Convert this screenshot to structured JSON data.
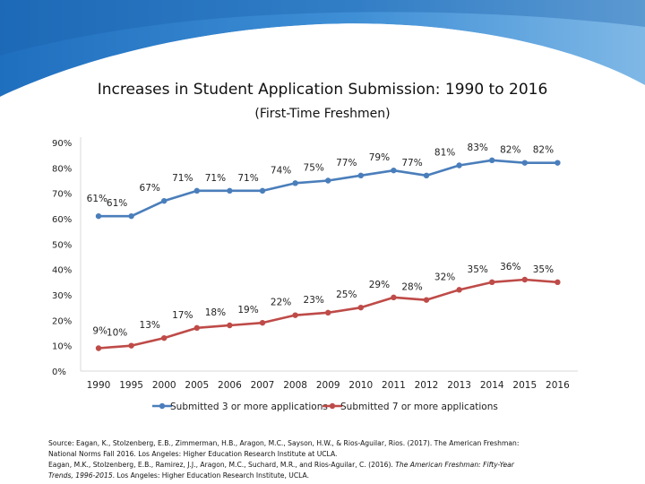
{
  "header": {
    "title": "Increases in Student Application Submission: 1990 to 2016",
    "subtitle": "(First-Time Freshmen)"
  },
  "colors": {
    "banner_dark": "#1f6fbf",
    "banner_light": "#5ea4df",
    "series_blue": "#4a7ebb",
    "series_red": "#be4b48",
    "axis": "#d9d9d9",
    "text": "#111111"
  },
  "chart_data": {
    "type": "line",
    "title": "Increases in Student Application Submission: 1990 to 2016",
    "subtitle": "(First-Time Freshmen)",
    "x": [
      "1990",
      "1995",
      "2000",
      "2005",
      "2006",
      "2007",
      "2008",
      "2009",
      "2010",
      "2011",
      "2012",
      "2013",
      "2014",
      "2015",
      "2016"
    ],
    "yticks": [
      "0%",
      "10%",
      "20%",
      "30%",
      "40%",
      "50%",
      "60%",
      "70%",
      "80%",
      "90%"
    ],
    "ylim": [
      0,
      90
    ],
    "grid": false,
    "legend": "bottom",
    "series": [
      {
        "name": "Submitted 3 or more applications",
        "values": [
          61,
          61,
          67,
          71,
          71,
          71,
          74,
          75,
          77,
          79,
          77,
          81,
          83,
          82,
          82
        ],
        "labels": [
          "61%",
          "61%",
          "67%",
          "71%",
          "71%",
          "71%",
          "74%",
          "75%",
          "77%",
          "79%",
          "77%",
          "81%",
          "83%",
          "82%",
          "82%"
        ]
      },
      {
        "name": "Submitted 7 or more applications",
        "values": [
          9,
          10,
          13,
          17,
          18,
          19,
          22,
          23,
          25,
          29,
          28,
          32,
          35,
          36,
          35
        ],
        "labels": [
          "9%",
          "10%",
          "13%",
          "17%",
          "18%",
          "19%",
          "22%",
          "23%",
          "25%",
          "29%",
          "28%",
          "32%",
          "35%",
          "36%",
          "35%"
        ]
      }
    ]
  },
  "source": {
    "line1": "Source: Eagan, K., Stolzenberg, E.B., Zimmerman, H.B., Aragon, M.C., Sayson, H.W., & Rios-Aguilar, Rios. (2017). The American Freshman:",
    "line2": "National Norms Fall 2016. Los Angeles: Higher Education Research Institute at UCLA.",
    "line3_a": "Eagan, M.K., Stolzenberg, E.B., Ramirez, J.J., Aragon, M.C., Suchard, M.R., and Rios-Aguilar, C. (2016). ",
    "line3_b": "The American Freshman: Fifty-Year",
    "line4_a": "Trends, 1996-2015",
    "line4_b": ". Los Angeles: Higher Education Research Institute, UCLA."
  }
}
